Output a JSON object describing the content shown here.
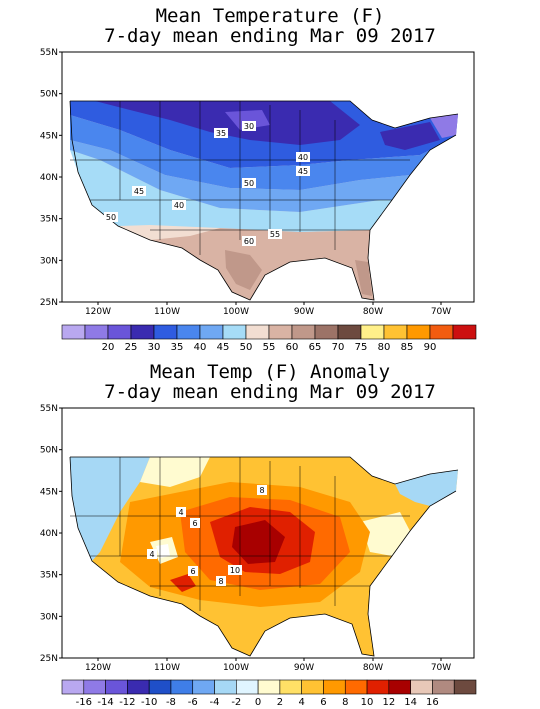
{
  "panels": [
    {
      "title_line1": "Mean Temperature (F)",
      "title_line2": "7-day mean ending Mar 09 2017",
      "lat_ticks": [
        "55N",
        "50N",
        "45N",
        "40N",
        "35N",
        "30N",
        "25N"
      ],
      "lon_ticks": [
        "120W",
        "110W",
        "100W",
        "90W",
        "80W",
        "70W"
      ],
      "colorbar": {
        "colors": [
          "#b9a8f0",
          "#8f7ae6",
          "#6a55d9",
          "#3a2bb0",
          "#2f5ce0",
          "#4a86ee",
          "#6fa8f3",
          "#a6dcf7",
          "#f2ded2",
          "#d9b3a4",
          "#c0988a",
          "#9c7367",
          "#6d4a3f",
          "#fff08a",
          "#ffc233",
          "#ff9900",
          "#f25c10",
          "#cc1010"
        ],
        "labels": [
          "20",
          "25",
          "30",
          "35",
          "40",
          "45",
          "50",
          "55",
          "60",
          "65",
          "70",
          "75",
          "80",
          "85",
          "90"
        ]
      },
      "contour_labels": [
        "30",
        "35",
        "40",
        "45",
        "50",
        "45",
        "40",
        "50",
        "55",
        "60"
      ]
    },
    {
      "title_line1": "Mean Temp (F) Anomaly",
      "title_line2": "7-day mean ending Mar 09 2017",
      "lat_ticks": [
        "55N",
        "50N",
        "45N",
        "40N",
        "35N",
        "30N",
        "25N"
      ],
      "lon_ticks": [
        "120W",
        "110W",
        "100W",
        "90W",
        "80W",
        "70W"
      ],
      "colorbar": {
        "colors": [
          "#b9a8f0",
          "#8f7ae6",
          "#6a55d9",
          "#3a2bb0",
          "#1f4fc8",
          "#3f7ee8",
          "#6fa8f3",
          "#a6d8f5",
          "#e0f5ff",
          "#fffbd0",
          "#ffe066",
          "#ffc233",
          "#ff9900",
          "#ff6a00",
          "#e02000",
          "#a80000",
          "#e8c8b8",
          "#b08a80",
          "#6d4a3f"
        ],
        "labels": [
          "-16",
          "-14",
          "-12",
          "-10",
          "-8",
          "-6",
          "-4",
          "-2",
          "0",
          "2",
          "4",
          "6",
          "8",
          "10",
          "12",
          "14",
          "16"
        ]
      },
      "contour_labels": [
        "4",
        "6",
        "8",
        "4",
        "10",
        "6",
        "8"
      ]
    }
  ]
}
